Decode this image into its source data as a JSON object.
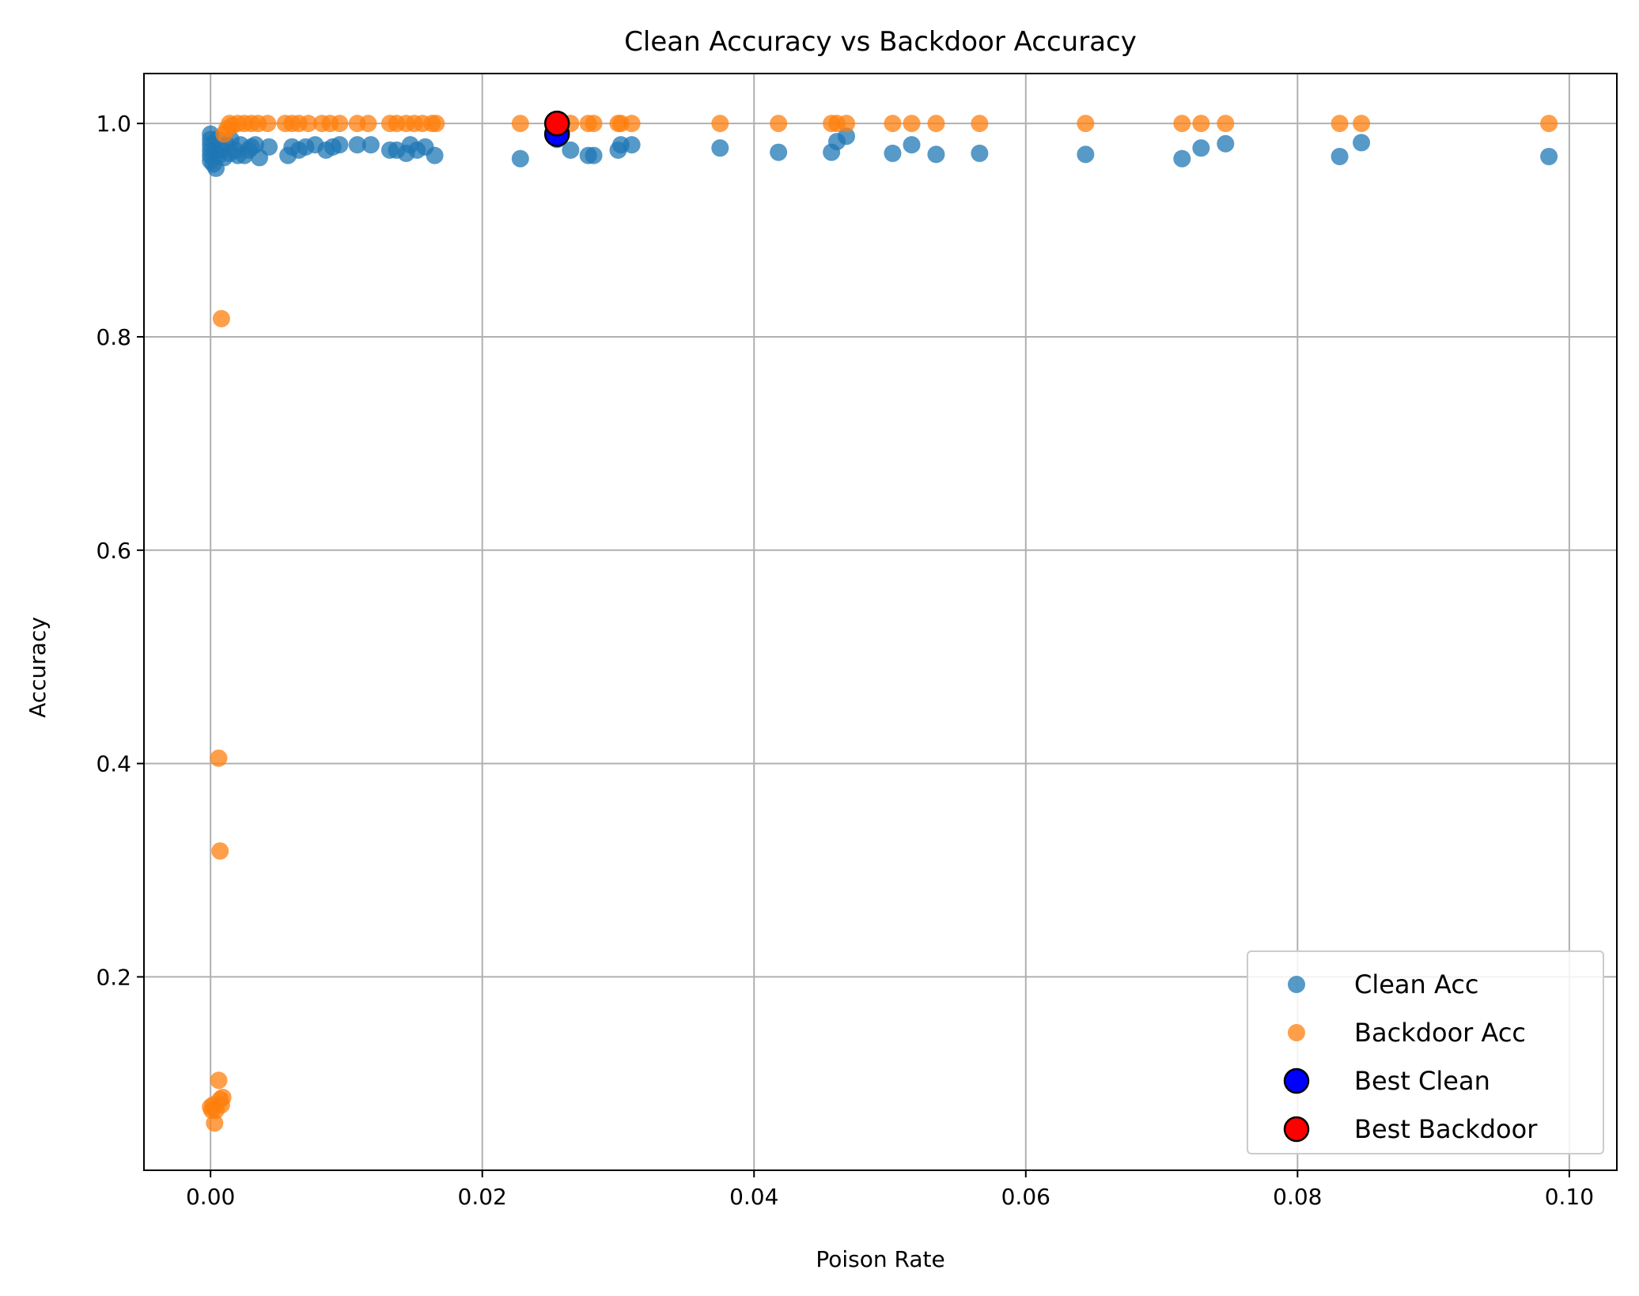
{
  "chart_data": {
    "type": "scatter",
    "title": "Clean Accuracy vs Backdoor Accuracy",
    "xlabel": "Poison Rate",
    "ylabel": "Accuracy",
    "xlim": [
      -0.0049,
      0.1035
    ],
    "ylim": [
      0.0187,
      1.0468
    ],
    "xticks": [
      0.0,
      0.02,
      0.04,
      0.06,
      0.08,
      0.1
    ],
    "xtick_labels": [
      "0.00",
      "0.02",
      "0.04",
      "0.06",
      "0.08",
      "0.10"
    ],
    "yticks": [
      0.2,
      0.4,
      0.6,
      0.8,
      1.0
    ],
    "ytick_labels": [
      "0.2",
      "0.4",
      "0.6",
      "0.8",
      "1.0"
    ],
    "grid": true,
    "legend_position": "lower right",
    "series": [
      {
        "name": "Clean Acc",
        "color": "#1f77b4",
        "points": [
          [
            0.0,
            0.99
          ],
          [
            0.0,
            0.985
          ],
          [
            0.0,
            0.98
          ],
          [
            0.0,
            0.975
          ],
          [
            0.0,
            0.97
          ],
          [
            0.0,
            0.965
          ],
          [
            0.0002,
            0.962
          ],
          [
            0.0003,
            0.975
          ],
          [
            0.0004,
            0.958
          ],
          [
            0.0005,
            0.985
          ],
          [
            0.0006,
            0.97
          ],
          [
            0.0008,
            0.975
          ],
          [
            0.001,
            0.968
          ],
          [
            0.0012,
            0.98
          ],
          [
            0.0014,
            0.972
          ],
          [
            0.0015,
            0.985
          ],
          [
            0.0018,
            0.975
          ],
          [
            0.002,
            0.97
          ],
          [
            0.0022,
            0.98
          ],
          [
            0.0025,
            0.97
          ],
          [
            0.0028,
            0.975
          ],
          [
            0.003,
            0.978
          ],
          [
            0.0033,
            0.98
          ],
          [
            0.0036,
            0.968
          ],
          [
            0.0043,
            0.978
          ],
          [
            0.0057,
            0.97
          ],
          [
            0.006,
            0.978
          ],
          [
            0.0065,
            0.975
          ],
          [
            0.007,
            0.978
          ],
          [
            0.0077,
            0.98
          ],
          [
            0.0085,
            0.975
          ],
          [
            0.009,
            0.978
          ],
          [
            0.0095,
            0.98
          ],
          [
            0.0108,
            0.98
          ],
          [
            0.0118,
            0.98
          ],
          [
            0.0132,
            0.975
          ],
          [
            0.0137,
            0.975
          ],
          [
            0.0144,
            0.972
          ],
          [
            0.0147,
            0.98
          ],
          [
            0.0152,
            0.975
          ],
          [
            0.0158,
            0.978
          ],
          [
            0.0165,
            0.97
          ],
          [
            0.0228,
            0.967
          ],
          [
            0.0255,
            0.985
          ],
          [
            0.0265,
            0.975
          ],
          [
            0.0278,
            0.97
          ],
          [
            0.0282,
            0.97
          ],
          [
            0.03,
            0.975
          ],
          [
            0.0302,
            0.98
          ],
          [
            0.031,
            0.98
          ],
          [
            0.0375,
            0.977
          ],
          [
            0.0418,
            0.973
          ],
          [
            0.0457,
            0.973
          ],
          [
            0.0461,
            0.983
          ],
          [
            0.0468,
            0.988
          ],
          [
            0.0502,
            0.972
          ],
          [
            0.0516,
            0.98
          ],
          [
            0.0534,
            0.971
          ],
          [
            0.0566,
            0.972
          ],
          [
            0.0644,
            0.971
          ],
          [
            0.0715,
            0.967
          ],
          [
            0.0729,
            0.977
          ],
          [
            0.0747,
            0.981
          ],
          [
            0.0831,
            0.969
          ],
          [
            0.0847,
            0.982
          ],
          [
            0.0985,
            0.969
          ]
        ]
      },
      {
        "name": "Backdoor Acc",
        "color": "#ff7f0e",
        "points": [
          [
            0.0,
            0.078
          ],
          [
            0.0001,
            0.075
          ],
          [
            0.0002,
            0.08
          ],
          [
            0.0003,
            0.063
          ],
          [
            0.0004,
            0.075
          ],
          [
            0.0006,
            0.103
          ],
          [
            0.0007,
            0.085
          ],
          [
            0.0008,
            0.08
          ],
          [
            0.0009,
            0.087
          ],
          [
            0.0006,
            0.405
          ],
          [
            0.0007,
            0.318
          ],
          [
            0.0008,
            0.817
          ],
          [
            0.001,
            0.99
          ],
          [
            0.0012,
            0.995
          ],
          [
            0.0014,
            1.0
          ],
          [
            0.0016,
            0.998
          ],
          [
            0.002,
            1.0
          ],
          [
            0.0025,
            1.0
          ],
          [
            0.003,
            1.0
          ],
          [
            0.0035,
            1.0
          ],
          [
            0.0042,
            1.0
          ],
          [
            0.0055,
            1.0
          ],
          [
            0.006,
            1.0
          ],
          [
            0.0065,
            1.0
          ],
          [
            0.0072,
            1.0
          ],
          [
            0.0082,
            1.0
          ],
          [
            0.0088,
            1.0
          ],
          [
            0.0095,
            1.0
          ],
          [
            0.0108,
            1.0
          ],
          [
            0.0116,
            1.0
          ],
          [
            0.0132,
            1.0
          ],
          [
            0.0137,
            1.0
          ],
          [
            0.0144,
            1.0
          ],
          [
            0.015,
            1.0
          ],
          [
            0.0156,
            1.0
          ],
          [
            0.0163,
            1.0
          ],
          [
            0.0166,
            1.0
          ],
          [
            0.0228,
            1.0
          ],
          [
            0.0265,
            1.0
          ],
          [
            0.0278,
            1.0
          ],
          [
            0.0282,
            1.0
          ],
          [
            0.03,
            1.0
          ],
          [
            0.0302,
            1.0
          ],
          [
            0.031,
            1.0
          ],
          [
            0.0375,
            1.0
          ],
          [
            0.0418,
            1.0
          ],
          [
            0.0457,
            1.0
          ],
          [
            0.0461,
            1.0
          ],
          [
            0.0468,
            1.0
          ],
          [
            0.0502,
            1.0
          ],
          [
            0.0516,
            1.0
          ],
          [
            0.0534,
            1.0
          ],
          [
            0.0566,
            1.0
          ],
          [
            0.0644,
            1.0
          ],
          [
            0.0715,
            1.0
          ],
          [
            0.0729,
            1.0
          ],
          [
            0.0747,
            1.0
          ],
          [
            0.0831,
            1.0
          ],
          [
            0.0847,
            1.0
          ],
          [
            0.0985,
            1.0
          ]
        ]
      },
      {
        "name": "Best Clean",
        "color": "#0000ff",
        "points": [
          [
            0.0255,
            0.99
          ]
        ]
      },
      {
        "name": "Best Backdoor",
        "color": "#ff0000",
        "points": [
          [
            0.0255,
            1.0
          ]
        ]
      }
    ]
  }
}
